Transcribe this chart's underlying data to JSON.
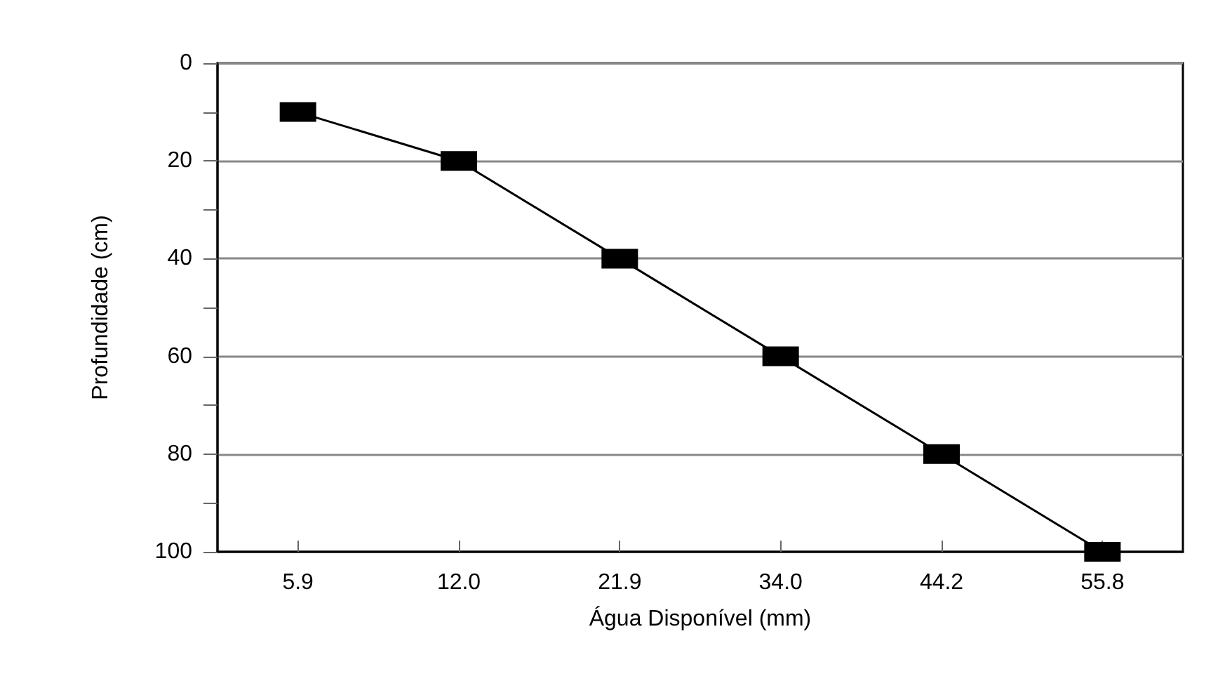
{
  "chart_data": {
    "type": "line",
    "xlabel": "Água Disponível (mm)",
    "ylabel": "Profundidade (cm)",
    "categories": [
      "5.9",
      "12.0",
      "21.9",
      "34.0",
      "44.2",
      "55.8"
    ],
    "series": [
      {
        "color": "#000000",
        "values": [
          10,
          20,
          40,
          60,
          80,
          100
        ]
      }
    ],
    "ylim": [
      100,
      0
    ],
    "yticks": [
      0,
      {
        "value": 10,
        "label": null
      },
      20,
      {
        "value": 30,
        "label": null
      },
      40,
      {
        "value": 50,
        "label": null
      },
      60,
      {
        "value": 70,
        "label": null
      },
      80,
      {
        "value": 90,
        "label": null
      },
      100
    ],
    "grid": "y",
    "marker": "square",
    "line_style": "solid"
  }
}
